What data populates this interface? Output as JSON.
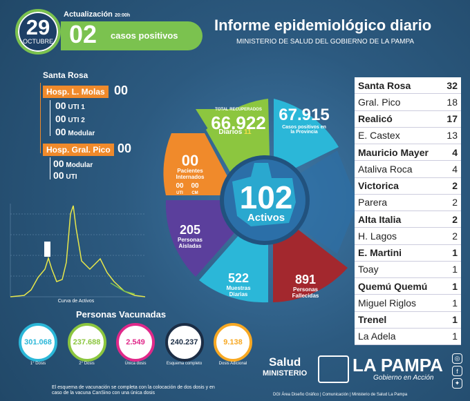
{
  "header": {
    "day": "29",
    "month": "OCTUBRE",
    "update_label": "Actualización",
    "update_time": "20:00h",
    "positive_count": "02",
    "positive_label": "casos positivos",
    "title": "Informe epidemiológico diario",
    "subtitle": "MINISTERIO DE SALUD DEL GOBIERNO DE LA PAMPA"
  },
  "hospitals": {
    "city": "Santa Rosa",
    "molas": {
      "label": "Hosp. L. Molas",
      "value": "00",
      "items": [
        {
          "value": "00",
          "label": "UTI 1"
        },
        {
          "value": "00",
          "label": "UTI 2"
        },
        {
          "value": "00",
          "label": "Modular"
        }
      ]
    },
    "pico": {
      "label": "Hosp. Gral. Pico",
      "value": "00",
      "items": [
        {
          "value": "00",
          "label": "Modular"
        },
        {
          "value": "00",
          "label": "UTI"
        }
      ]
    }
  },
  "chart_label": "Curva de Activos",
  "wheel": {
    "recuperados_label": "TOTAL RECUPERADOS",
    "recuperados": "66.922",
    "diarios_label": "Diarios",
    "diarios": "11",
    "positivos": "67.915",
    "positivos_label": "Casos positivos en la Provincia",
    "internados": "00",
    "internados_label": "Pacientes Internados",
    "uti_val": "00",
    "uti_label": "UTI",
    "cm_val": "00",
    "cm_label": "CM",
    "activos": "102",
    "activos_label": "Activos",
    "aisladas": "205",
    "aisladas_label": "Personas Aisladas",
    "muestras": "522",
    "muestras_label": "Muestras Diarias",
    "fallecidas": "891",
    "fallecidas_label": "Personas Fallecidas"
  },
  "localities": [
    {
      "name": "Santa Rosa",
      "value": "32",
      "bold": true
    },
    {
      "name": "Gral. Pico",
      "value": "18",
      "bold": false
    },
    {
      "name": "Realicó",
      "value": "17",
      "bold": true
    },
    {
      "name": "E. Castex",
      "value": "13",
      "bold": false
    },
    {
      "name": "Mauricio Mayer",
      "value": "4",
      "bold": true
    },
    {
      "name": "Ataliva Roca",
      "value": "4",
      "bold": false
    },
    {
      "name": "Victorica",
      "value": "2",
      "bold": true
    },
    {
      "name": "Parera",
      "value": "2",
      "bold": false
    },
    {
      "name": "Alta Italia",
      "value": "2",
      "bold": true
    },
    {
      "name": "H. Lagos",
      "value": "2",
      "bold": false
    },
    {
      "name": "E. Martini",
      "value": "1",
      "bold": true
    },
    {
      "name": "Toay",
      "value": "1",
      "bold": false
    },
    {
      "name": "Quemú Quemú",
      "value": "1",
      "bold": true
    },
    {
      "name": "Miguel Riglos",
      "value": "1",
      "bold": false
    },
    {
      "name": "Trenel",
      "value": "1",
      "bold": true
    },
    {
      "name": "La Adela",
      "value": "1",
      "bold": false
    }
  ],
  "vaccines": {
    "title": "Personas Vacunadas",
    "items": [
      {
        "value": "301.068",
        "label": "1° Dosis",
        "color": "#2bb7d8"
      },
      {
        "value": "237.688",
        "label": "2° Dosis",
        "color": "#8cc63f"
      },
      {
        "value": "2.549",
        "label": "Única dosis",
        "color": "#e0298a"
      },
      {
        "value": "240.237",
        "label": "Esquema completo",
        "color": "#1b2d45"
      },
      {
        "value": "9.138",
        "label": "Dosis Adicional",
        "color": "#f7a823"
      }
    ],
    "note": "El esquema de vacunación se completa con la colocación de dos dosis y en caso de la vacuna CanSino con una única dosis"
  },
  "footer": "DGI Área Diseño Gráfico  |  Comunicación  |  Ministerio de Salud La Pampa",
  "logo": {
    "salud": "Salud",
    "ministerio": "MINISTERIO",
    "lapampa": "LA PAMPA",
    "gobierno": "Gobierno en Acción"
  }
}
